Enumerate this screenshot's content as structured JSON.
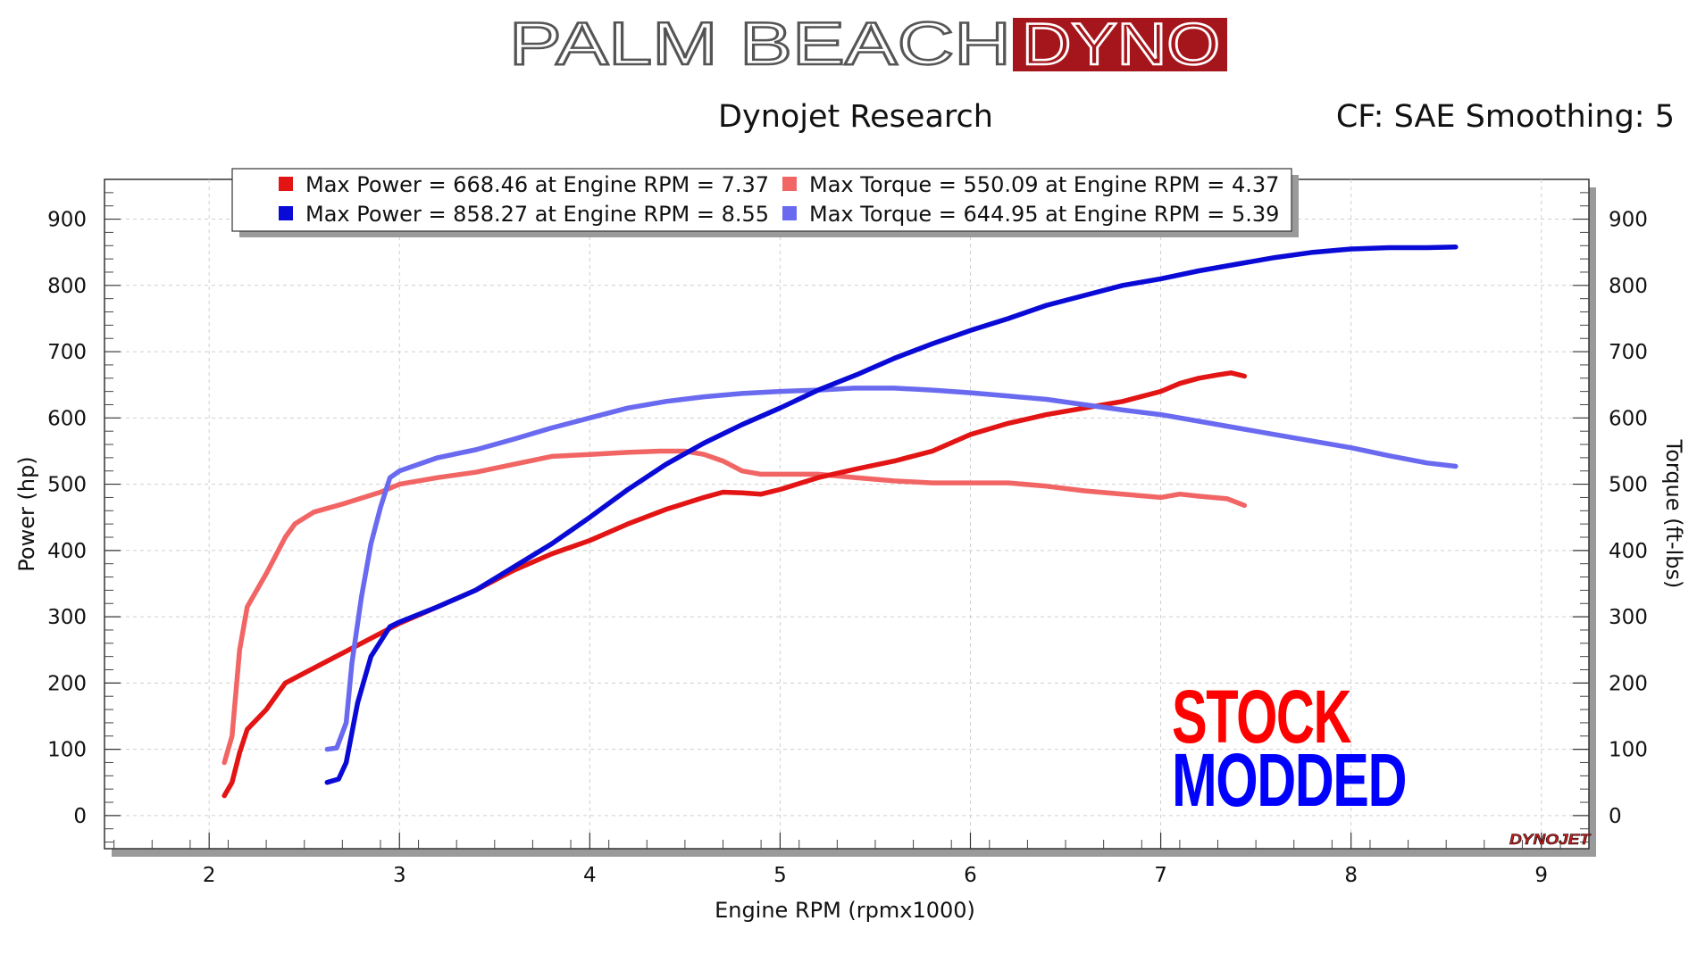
{
  "logo": {
    "left_text": "PALM BEACH",
    "right_text": "DYNO",
    "right_bg_color": "#a5161c"
  },
  "header": {
    "title": "Dynojet Research",
    "settings": "CF: SAE Smoothing: 5"
  },
  "watermark": {
    "brand": "DYNOJET"
  },
  "annotations": {
    "stock_label": "STOCK",
    "stock_color": "#ff0000",
    "modded_label": "MODDED",
    "modded_color": "#0000ff"
  },
  "chart_data": {
    "type": "line",
    "xlabel": "Engine RPM (rpmx1000)",
    "ylabel": "Power (hp)",
    "y2label": "Torque (ft-lbs)",
    "xlim": [
      1.45,
      9.25
    ],
    "ylim": [
      -50,
      960
    ],
    "x_ticks": [
      "2",
      "3",
      "4",
      "5",
      "6",
      "7",
      "8",
      "9"
    ],
    "y_ticks": [
      "0",
      "100",
      "200",
      "300",
      "400",
      "500",
      "600",
      "700",
      "800",
      "900"
    ],
    "y2_ticks": [
      "0",
      "100",
      "200",
      "300",
      "400",
      "500",
      "600",
      "700",
      "800",
      "900"
    ],
    "grid": true,
    "legend": [
      {
        "label": "Max Power = 668.46 at Engine RPM = 7.37",
        "color": "#e31414"
      },
      {
        "label": "Max Torque = 550.09 at Engine RPM = 4.37",
        "color": "#f26565"
      },
      {
        "label": "Max Power = 858.27 at Engine RPM = 8.55",
        "color": "#0a0ad6"
      },
      {
        "label": "Max Torque = 644.95 at Engine RPM = 5.39",
        "color": "#6a6af0"
      }
    ],
    "series": [
      {
        "color": "#f26565",
        "points": [
          [
            2.08,
            80
          ],
          [
            2.12,
            120
          ],
          [
            2.16,
            250
          ],
          [
            2.2,
            315
          ],
          [
            2.3,
            365
          ],
          [
            2.4,
            420
          ],
          [
            2.45,
            440
          ],
          [
            2.55,
            458
          ],
          [
            2.7,
            470
          ],
          [
            2.9,
            488
          ],
          [
            3.0,
            500
          ],
          [
            3.2,
            510
          ],
          [
            3.4,
            518
          ],
          [
            3.6,
            530
          ],
          [
            3.8,
            542
          ],
          [
            4.0,
            545
          ],
          [
            4.2,
            548
          ],
          [
            4.37,
            550
          ],
          [
            4.5,
            550
          ],
          [
            4.6,
            545
          ],
          [
            4.7,
            535
          ],
          [
            4.8,
            520
          ],
          [
            4.9,
            515
          ],
          [
            5.0,
            515
          ],
          [
            5.2,
            515
          ],
          [
            5.4,
            510
          ],
          [
            5.6,
            505
          ],
          [
            5.8,
            502
          ],
          [
            6.0,
            502
          ],
          [
            6.2,
            502
          ],
          [
            6.4,
            497
          ],
          [
            6.6,
            490
          ],
          [
            6.8,
            485
          ],
          [
            7.0,
            480
          ],
          [
            7.1,
            485
          ],
          [
            7.2,
            482
          ],
          [
            7.35,
            478
          ],
          [
            7.44,
            468
          ]
        ]
      },
      {
        "color": "#e31414",
        "points": [
          [
            2.08,
            30
          ],
          [
            2.12,
            50
          ],
          [
            2.16,
            95
          ],
          [
            2.2,
            130
          ],
          [
            2.3,
            160
          ],
          [
            2.4,
            200
          ],
          [
            2.5,
            215
          ],
          [
            2.6,
            230
          ],
          [
            2.8,
            260
          ],
          [
            3.0,
            290
          ],
          [
            3.2,
            315
          ],
          [
            3.4,
            340
          ],
          [
            3.6,
            370
          ],
          [
            3.8,
            395
          ],
          [
            4.0,
            415
          ],
          [
            4.2,
            440
          ],
          [
            4.4,
            462
          ],
          [
            4.6,
            480
          ],
          [
            4.7,
            488
          ],
          [
            4.8,
            487
          ],
          [
            4.9,
            485
          ],
          [
            5.0,
            492
          ],
          [
            5.2,
            510
          ],
          [
            5.4,
            523
          ],
          [
            5.6,
            535
          ],
          [
            5.8,
            550
          ],
          [
            6.0,
            575
          ],
          [
            6.2,
            592
          ],
          [
            6.4,
            605
          ],
          [
            6.6,
            615
          ],
          [
            6.8,
            625
          ],
          [
            7.0,
            640
          ],
          [
            7.1,
            652
          ],
          [
            7.2,
            660
          ],
          [
            7.3,
            665
          ],
          [
            7.37,
            668
          ],
          [
            7.44,
            663
          ]
        ]
      },
      {
        "color": "#6a6af0",
        "points": [
          [
            2.62,
            100
          ],
          [
            2.67,
            102
          ],
          [
            2.72,
            140
          ],
          [
            2.75,
            230
          ],
          [
            2.8,
            330
          ],
          [
            2.85,
            410
          ],
          [
            2.9,
            465
          ],
          [
            2.95,
            510
          ],
          [
            3.0,
            520
          ],
          [
            3.2,
            540
          ],
          [
            3.4,
            552
          ],
          [
            3.6,
            568
          ],
          [
            3.8,
            585
          ],
          [
            4.0,
            600
          ],
          [
            4.2,
            615
          ],
          [
            4.4,
            625
          ],
          [
            4.6,
            632
          ],
          [
            4.8,
            637
          ],
          [
            5.0,
            640
          ],
          [
            5.2,
            642
          ],
          [
            5.39,
            645
          ],
          [
            5.6,
            645
          ],
          [
            5.8,
            642
          ],
          [
            6.0,
            638
          ],
          [
            6.2,
            633
          ],
          [
            6.4,
            628
          ],
          [
            6.6,
            620
          ],
          [
            6.8,
            612
          ],
          [
            7.0,
            605
          ],
          [
            7.2,
            595
          ],
          [
            7.4,
            585
          ],
          [
            7.6,
            575
          ],
          [
            7.8,
            565
          ],
          [
            8.0,
            555
          ],
          [
            8.2,
            543
          ],
          [
            8.4,
            532
          ],
          [
            8.55,
            527
          ]
        ]
      },
      {
        "color": "#0a0ad6",
        "points": [
          [
            2.62,
            50
          ],
          [
            2.68,
            55
          ],
          [
            2.72,
            80
          ],
          [
            2.78,
            170
          ],
          [
            2.85,
            240
          ],
          [
            2.95,
            285
          ],
          [
            3.0,
            292
          ],
          [
            3.2,
            315
          ],
          [
            3.4,
            340
          ],
          [
            3.6,
            375
          ],
          [
            3.8,
            410
          ],
          [
            4.0,
            450
          ],
          [
            4.2,
            492
          ],
          [
            4.4,
            530
          ],
          [
            4.6,
            562
          ],
          [
            4.8,
            590
          ],
          [
            5.0,
            615
          ],
          [
            5.2,
            642
          ],
          [
            5.4,
            665
          ],
          [
            5.6,
            690
          ],
          [
            5.8,
            712
          ],
          [
            6.0,
            732
          ],
          [
            6.2,
            750
          ],
          [
            6.4,
            770
          ],
          [
            6.6,
            785
          ],
          [
            6.8,
            800
          ],
          [
            7.0,
            810
          ],
          [
            7.2,
            822
          ],
          [
            7.4,
            832
          ],
          [
            7.6,
            842
          ],
          [
            7.8,
            850
          ],
          [
            8.0,
            855
          ],
          [
            8.2,
            857
          ],
          [
            8.4,
            857
          ],
          [
            8.55,
            858
          ]
        ]
      }
    ]
  }
}
